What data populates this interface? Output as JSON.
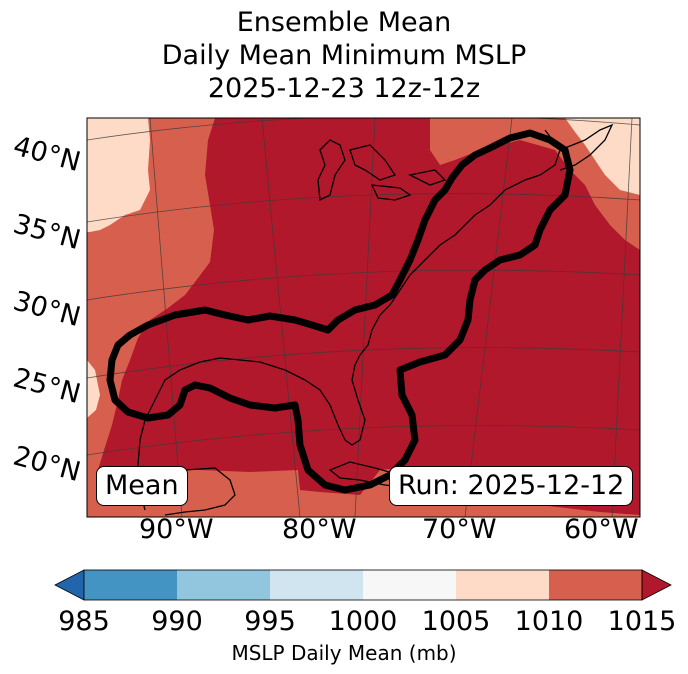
{
  "title": {
    "line1": "Ensemble Mean",
    "line2": "Daily Mean Minimum MSLP",
    "line3": "2025-12-23 12z-12z"
  },
  "map": {
    "lat_labels": [
      "40°N",
      "35°N",
      "30°N",
      "25°N",
      "20°N"
    ],
    "lon_labels": [
      "90°W",
      "80°W",
      "70°W",
      "60°W"
    ],
    "mean_label": "Mean",
    "run_label": "Run: 2025-12-12"
  },
  "colorbar": {
    "ticks": [
      "985",
      "990",
      "995",
      "1000",
      "1005",
      "1010",
      "1015"
    ],
    "label": "MSLP Daily Mean (mb)",
    "colors": [
      "#2166ac",
      "#4393c3",
      "#92c5de",
      "#d1e5f0",
      "#f7f7f7",
      "#fddbc7",
      "#d6604d",
      "#b2182b"
    ]
  },
  "colors": {
    "dark_red": "#b2182b",
    "medium_red": "#d6604d",
    "light_pink": "#fddbc7",
    "contour": "#000000"
  }
}
